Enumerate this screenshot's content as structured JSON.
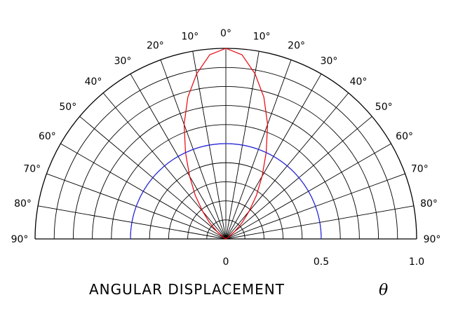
{
  "chart_data": {
    "type": "line",
    "coordinate_system": "polar",
    "title": "ANGULAR DISPLACEMENT",
    "title_symbol": "θ",
    "angle_labels_left": [
      "10°",
      "20°",
      "30°",
      "40°",
      "50°",
      "60°",
      "70°",
      "80°",
      "90°"
    ],
    "angle_labels_right": [
      "0°",
      "10°",
      "20°",
      "30°",
      "40°",
      "50°",
      "60°",
      "70°",
      "80°",
      "90°"
    ],
    "radial_labels": [
      "0",
      "0.5",
      "1.0"
    ],
    "angle_range": [
      -90,
      90
    ],
    "radius_range": [
      0,
      1.0
    ],
    "grid": true,
    "series": [
      {
        "color": "#e8000b",
        "angles": [
          -60,
          -55,
          -50,
          -45,
          -40,
          -35,
          -30,
          -25,
          -20,
          -15,
          -10,
          -5,
          0,
          5,
          10,
          15,
          20,
          25,
          30,
          35,
          40,
          45,
          50,
          55,
          60
        ],
        "values": [
          0.0,
          0.02,
          0.06,
          0.12,
          0.19,
          0.28,
          0.38,
          0.5,
          0.64,
          0.77,
          0.88,
          0.97,
          1.0,
          0.97,
          0.88,
          0.77,
          0.64,
          0.5,
          0.38,
          0.28,
          0.19,
          0.12,
          0.06,
          0.02,
          0.0
        ]
      },
      {
        "color": "#2222dd",
        "angles": [
          -90,
          90
        ],
        "values": [
          0.5,
          0.5
        ]
      }
    ]
  }
}
